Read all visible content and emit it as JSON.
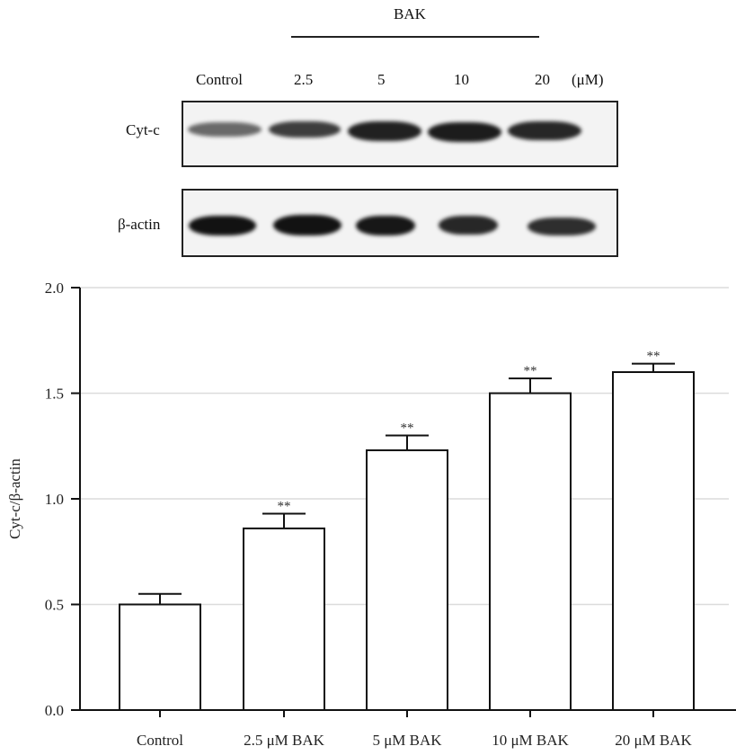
{
  "blot": {
    "treatment_label": "BAK",
    "lane_labels": [
      "Control",
      "2.5",
      "5",
      "10",
      "20"
    ],
    "unit_label": "(μM)",
    "rows": [
      {
        "label": "Cyt-c",
        "intensities": [
          0.55,
          0.75,
          0.9,
          0.95,
          0.88
        ]
      },
      {
        "label": "β-actin",
        "intensities": [
          0.95,
          0.95,
          0.92,
          0.88,
          0.85
        ]
      }
    ]
  },
  "chart_data": {
    "type": "bar",
    "title": "",
    "xlabel": "",
    "ylabel": "Cyt-c/β-actin",
    "categories": [
      "Control",
      "2.5 μM BAK",
      "5 μM BAK",
      "10 μM BAK",
      "20 μM BAK"
    ],
    "values": [
      0.5,
      0.86,
      1.23,
      1.5,
      1.6
    ],
    "errors": [
      0.05,
      0.07,
      0.07,
      0.07,
      0.04
    ],
    "annotations": [
      "",
      "**",
      "**",
      "**",
      "**"
    ],
    "ylim": [
      0,
      2.0
    ],
    "yticks": [
      "0.0",
      "0.5",
      "1.0",
      "1.5",
      "2.0"
    ],
    "grid": true,
    "legend": null
  }
}
